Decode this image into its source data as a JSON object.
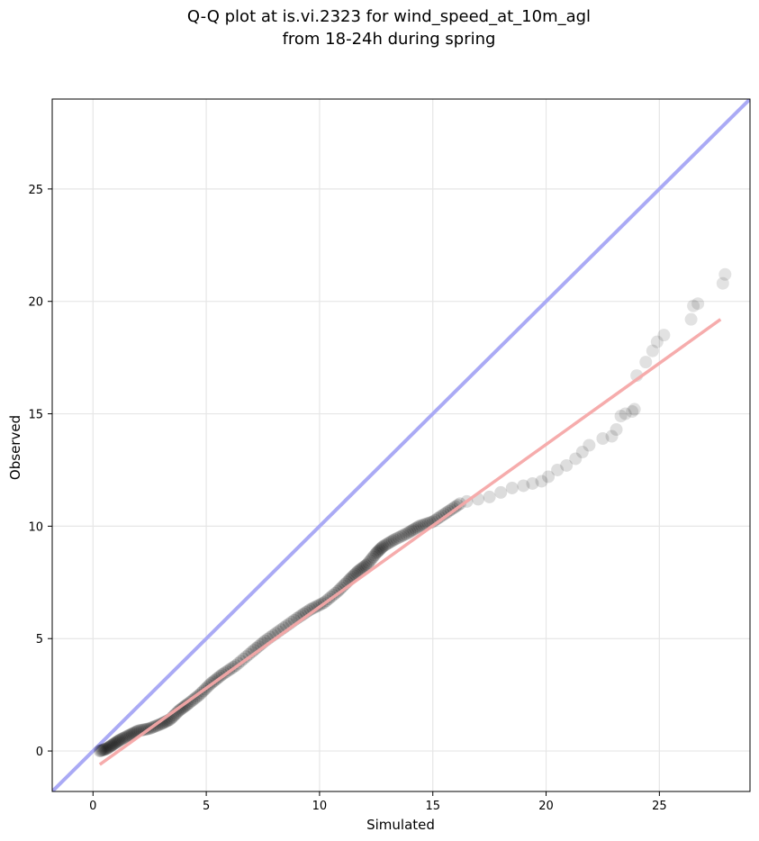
{
  "chart_data": {
    "type": "scatter",
    "title": "Q-Q plot at is.vi.2323 for wind_speed_at_10m_agl",
    "subtitle": "from 18-24h during spring",
    "xlabel": "Simulated",
    "ylabel": "Observed",
    "xlim": [
      -1.8,
      29.0
    ],
    "ylim": [
      -1.8,
      29.0
    ],
    "xticks": [
      0,
      5,
      10,
      15,
      20,
      25
    ],
    "yticks": [
      0,
      5,
      10,
      15,
      20,
      25
    ],
    "grid": true,
    "colors": {
      "points": "#000000",
      "identity_line": "#aaaaf5",
      "fit_line": "#f5a8a8"
    },
    "identity_line": {
      "x": [
        -1.8,
        29.0
      ],
      "y": [
        -1.8,
        29.0
      ]
    },
    "fit_line": {
      "x": [
        0.3,
        27.7
      ],
      "y": [
        -0.6,
        19.2
      ]
    },
    "dense_points": {
      "x": [
        0.3,
        0.6,
        0.9,
        1.2,
        1.6,
        2.0,
        2.5,
        3.0,
        3.4,
        3.8,
        4.2,
        4.7,
        5.2,
        5.7,
        6.3,
        7.0,
        7.6,
        8.3,
        9.0,
        9.6,
        10.2,
        10.8,
        11.3,
        11.7,
        12.1,
        12.5,
        12.8,
        13.3,
        13.9,
        14.4,
        15.0,
        15.6,
        16.2
      ],
      "y": [
        0.0,
        0.1,
        0.3,
        0.5,
        0.7,
        0.9,
        1.0,
        1.2,
        1.4,
        1.8,
        2.1,
        2.5,
        3.0,
        3.4,
        3.8,
        4.4,
        4.9,
        5.4,
        5.9,
        6.3,
        6.6,
        7.1,
        7.6,
        8.0,
        8.3,
        8.8,
        9.1,
        9.4,
        9.7,
        10.0,
        10.2,
        10.6,
        11.0
      ]
    },
    "tail_points": {
      "x": [
        16.5,
        17.0,
        17.5,
        18.0,
        18.5,
        19.0,
        19.4,
        19.8,
        20.1,
        20.5,
        20.9,
        21.3,
        21.6,
        21.9,
        22.5,
        22.9,
        23.1,
        23.3,
        23.5,
        23.8,
        23.9,
        24.0,
        24.4,
        24.7,
        24.9,
        25.2,
        26.4,
        26.5,
        26.7,
        27.8,
        27.9
      ],
      "y": [
        11.1,
        11.2,
        11.3,
        11.5,
        11.7,
        11.8,
        11.9,
        12.0,
        12.2,
        12.5,
        12.7,
        13.0,
        13.3,
        13.6,
        13.9,
        14.0,
        14.3,
        14.9,
        15.0,
        15.1,
        15.2,
        16.7,
        17.3,
        17.8,
        18.2,
        18.5,
        19.2,
        19.8,
        19.9,
        20.8,
        21.2
      ]
    }
  }
}
